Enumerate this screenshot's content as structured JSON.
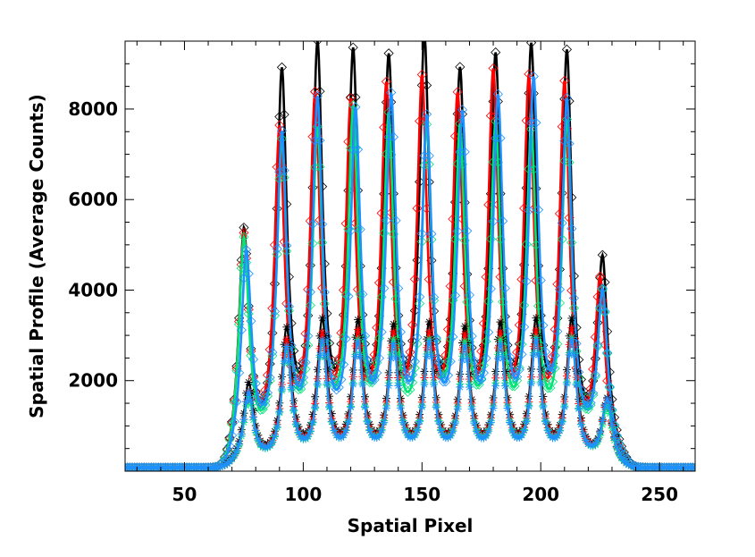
{
  "chart_data": {
    "type": "line",
    "title": "",
    "xlabel": "Spatial Pixel",
    "ylabel": "Spatial Profile (Average Counts)",
    "xlim": [
      25,
      265
    ],
    "ylim": [
      0,
      9500
    ],
    "x_ticks": [
      50,
      100,
      150,
      200,
      250
    ],
    "y_ticks": [
      2000,
      4000,
      6000,
      8000
    ],
    "grid": false,
    "legend": "none",
    "baseline": 80,
    "peak_width": 2.6,
    "series": [
      {
        "color": "#000000",
        "marker": "diamond",
        "peaks_x": [
          75,
          91,
          106,
          121,
          136,
          151,
          166,
          181,
          196,
          211,
          226
        ],
        "peaks_y": [
          5100,
          8400,
          8850,
          8650,
          8500,
          8950,
          8200,
          8550,
          8800,
          8800,
          4400
        ]
      },
      {
        "color": "#ff0000",
        "marker": "diamond",
        "peaks_x": [
          75,
          90,
          105,
          120,
          135,
          150,
          165,
          180,
          195,
          210,
          225
        ],
        "peaks_y": [
          5000,
          7150,
          7800,
          7600,
          7950,
          8100,
          7700,
          8250,
          8150,
          8150,
          3950
        ]
      },
      {
        "color": "#00e676",
        "marker": "diamond",
        "peaks_x": [
          75,
          91,
          106,
          121,
          136,
          152,
          166,
          181,
          196,
          211,
          226
        ],
        "peaks_y": [
          4950,
          6900,
          7050,
          7500,
          7350,
          7050,
          7050,
          7150,
          7000,
          7350,
          3700
        ]
      },
      {
        "color": "#1e90ff",
        "marker": "diamond",
        "peaks_x": [
          76,
          91,
          106,
          122,
          137,
          152,
          167,
          182,
          197,
          211,
          226
        ],
        "peaks_y": [
          4600,
          7050,
          7750,
          7450,
          7750,
          7250,
          7350,
          7700,
          8100,
          7750,
          3700
        ]
      },
      {
        "color": "#000000",
        "marker": "asterisk",
        "peaks_x": [
          77,
          93,
          108,
          123,
          138,
          153,
          168,
          183,
          198,
          213,
          228
        ],
        "peaks_y": [
          1850,
          3000,
          3150,
          3100,
          3000,
          3050,
          2950,
          3050,
          3150,
          3200,
          1500
        ]
      },
      {
        "color": "#ff0000",
        "marker": "asterisk",
        "peaks_x": [
          77,
          93,
          108,
          123,
          138,
          153,
          168,
          183,
          198,
          213,
          228
        ],
        "peaks_y": [
          1650,
          2750,
          2850,
          2900,
          2850,
          2850,
          2800,
          2850,
          2900,
          3000,
          1450
        ]
      },
      {
        "color": "#00e676",
        "marker": "asterisk",
        "peaks_x": [
          77,
          93,
          108,
          123,
          138,
          153,
          168,
          183,
          198,
          213,
          228
        ],
        "peaks_y": [
          1550,
          2550,
          2650,
          2700,
          2700,
          2700,
          2650,
          2700,
          2750,
          2800,
          1350
        ]
      },
      {
        "color": "#1e90ff",
        "marker": "asterisk",
        "peaks_x": [
          77,
          93,
          108,
          123,
          138,
          153,
          168,
          183,
          198,
          213,
          228
        ],
        "peaks_y": [
          1650,
          2600,
          2700,
          2650,
          2600,
          2650,
          2550,
          2600,
          2700,
          2750,
          1500
        ]
      }
    ]
  }
}
